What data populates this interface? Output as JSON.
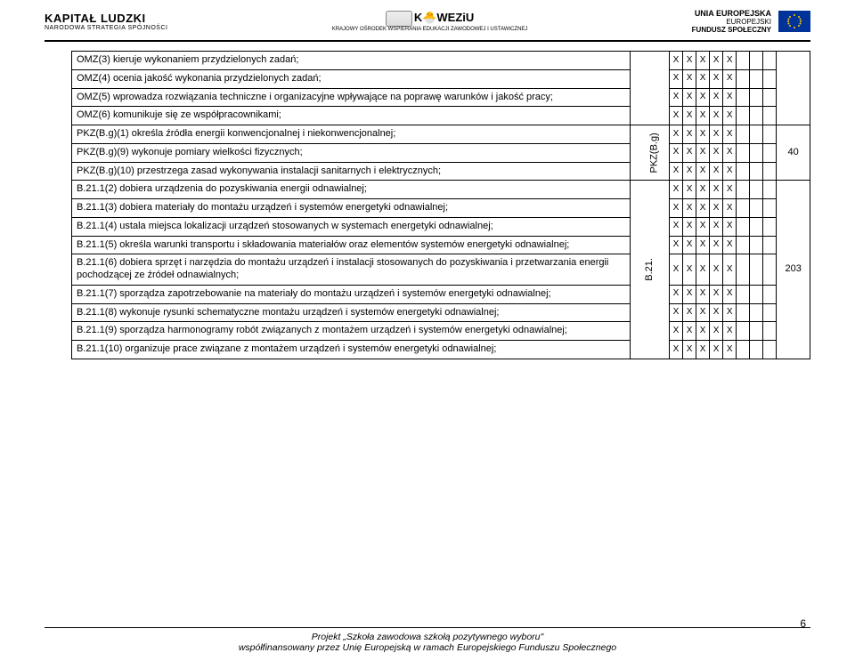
{
  "header": {
    "left": {
      "title": "KAPITAŁ LUDZKI",
      "subtitle": "NARODOWA STRATEGIA SPÓJNOŚCI"
    },
    "center": {
      "brand": "K🐣WEZiU",
      "sub": "KRAJOWY OŚRODEK WSPIERANIA EDUKACJI ZAWODOWEJ I USTAWICZNEJ"
    },
    "right": {
      "t1": "UNIA EUROPEJSKA",
      "t2": "EUROPEJSKI",
      "t3": "FUNDUSZ SPOŁECZNY"
    }
  },
  "rows": [
    {
      "text": "OMZ(3) kieruje wykonaniem przydzielonych zadań;",
      "x": [
        "X",
        "X",
        "X",
        "X",
        "X"
      ]
    },
    {
      "text": "OMZ(4) ocenia jakość wykonania przydzielonych zadań;",
      "x": [
        "X",
        "X",
        "X",
        "X",
        "X"
      ]
    },
    {
      "text": "OMZ(5) wprowadza rozwiązania techniczne i organizacyjne wpływające na poprawę warunków i jakość pracy;",
      "x": [
        "X",
        "X",
        "X",
        "X",
        "X"
      ]
    },
    {
      "text": "OMZ(6) komunikuje się ze współpracownikami;",
      "x": [
        "X",
        "X",
        "X",
        "X",
        "X"
      ]
    },
    {
      "text": "PKZ(B.g)(1) określa źródła energii konwencjonalnej i niekonwencjonalnej;",
      "x": [
        "X",
        "X",
        "X",
        "X",
        "X"
      ],
      "groupStart": true,
      "group": "PKZ(B.g)",
      "groupSpan": 3,
      "num": "40",
      "numSpan": 3
    },
    {
      "text": "PKZ(B.g)(9) wykonuje pomiary wielkości fizycznych;",
      "x": [
        "X",
        "X",
        "X",
        "X",
        "X"
      ]
    },
    {
      "text": "PKZ(B.g)(10) przestrzega zasad wykonywania instalacji sanitarnych i elektrycznych;",
      "x": [
        "X",
        "X",
        "X",
        "X",
        "X"
      ]
    },
    {
      "text": "B.21.1(2) dobiera urządzenia do pozyskiwania energii odnawialnej;",
      "x": [
        "X",
        "X",
        "X",
        "X",
        "X"
      ],
      "groupStart": true,
      "group": "B.21.",
      "groupSpan": 9,
      "num": "203",
      "numSpan": 9
    },
    {
      "text": "B.21.1(3) dobiera materiały do montażu urządzeń i systemów energetyki odnawialnej;",
      "x": [
        "X",
        "X",
        "X",
        "X",
        "X"
      ]
    },
    {
      "text": "B.21.1(4) ustala miejsca lokalizacji urządzeń stosowanych w systemach energetyki odnawialnej;",
      "x": [
        "X",
        "X",
        "X",
        "X",
        "X"
      ]
    },
    {
      "text": "B.21.1(5) określa warunki transportu i składowania materiałów oraz elementów systemów energetyki odnawialnej;",
      "x": [
        "X",
        "X",
        "X",
        "X",
        "X"
      ]
    },
    {
      "text": "B.21.1(6) dobiera sprzęt i narzędzia do montażu urządzeń i instalacji stosowanych do pozyskiwania i przetwarzania energii pochodzącej ze źródeł odnawialnych;",
      "x": [
        "X",
        "X",
        "X",
        "X",
        "X"
      ]
    },
    {
      "text": "B.21.1(7) sporządza zapotrzebowanie na materiały do montażu urządzeń i systemów energetyki odnawialnej;",
      "x": [
        "X",
        "X",
        "X",
        "X",
        "X"
      ]
    },
    {
      "text": "B.21.1(8) wykonuje rysunki schematyczne montażu urządzeń i systemów energetyki odnawialnej;",
      "x": [
        "X",
        "X",
        "X",
        "X",
        "X"
      ]
    },
    {
      "text": "B.21.1(9) sporządza harmonogramy robót związanych z montażem urządzeń i systemów energetyki odnawialnej;",
      "x": [
        "X",
        "X",
        "X",
        "X",
        "X"
      ]
    },
    {
      "text": "B.21.1(10) organizuje prace związane z montażem urządzeń i systemów energetyki odnawialnej;",
      "x": [
        "X",
        "X",
        "X",
        "X",
        "X"
      ]
    }
  ],
  "footer": {
    "line1": "Projekt „Szkoła zawodowa szkołą pozytywnego wyboru\"",
    "line2": "współfinansowany przez Unię Europejską w ramach Europejskiego Funduszu Społecznego"
  },
  "page": "6"
}
